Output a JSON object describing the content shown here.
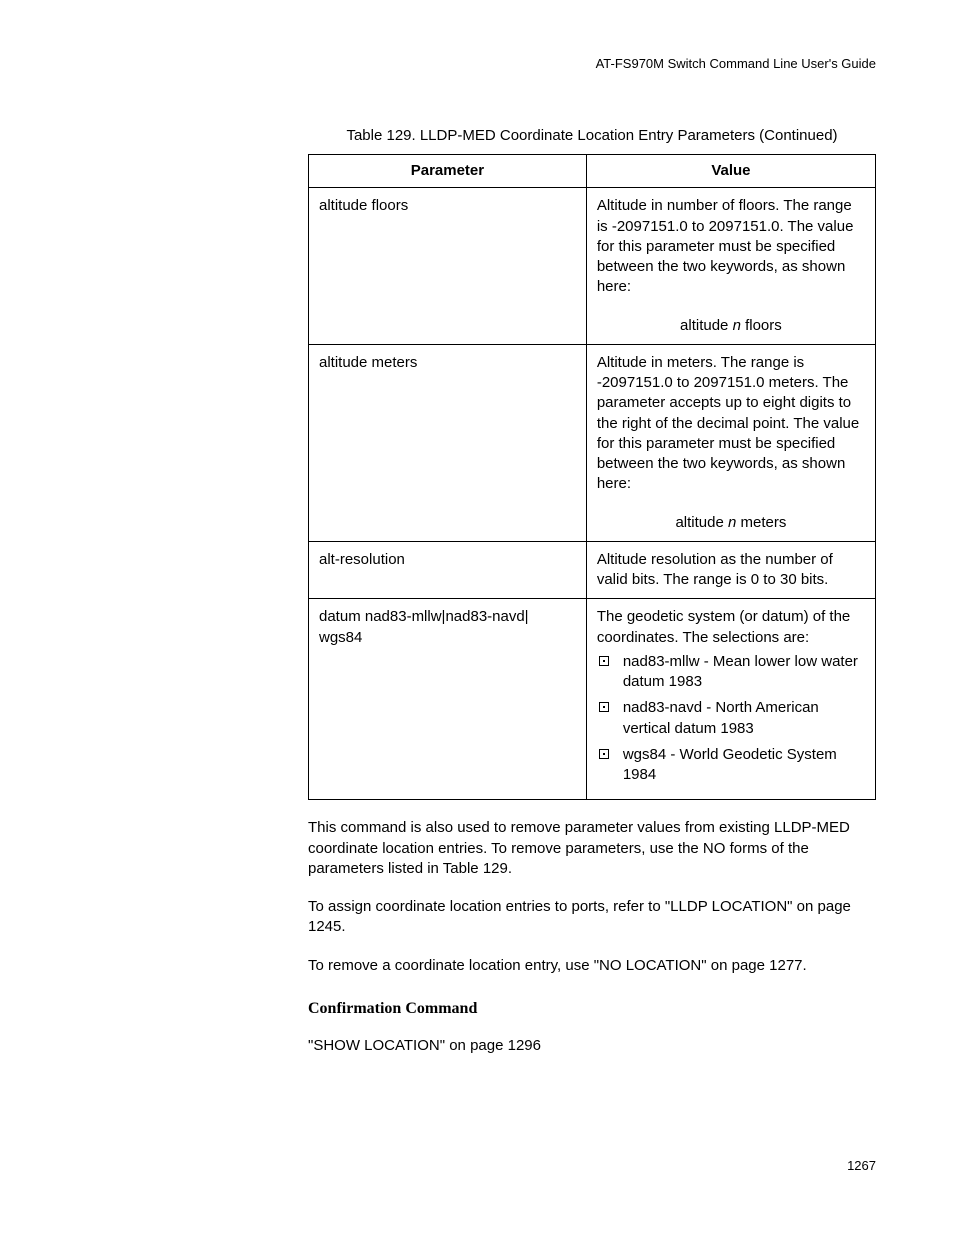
{
  "header": "AT-FS970M Switch Command Line User's Guide",
  "table": {
    "caption": "Table 129. LLDP-MED Coordinate Location Entry Parameters (Continued)",
    "col_parameter": "Parameter",
    "col_value": "Value",
    "rows": [
      {
        "param": "altitude floors",
        "desc": "Altitude in number of floors. The range is -2097151.0 to 2097151.0. The value for this parameter must be specified between the two keywords, as shown here:",
        "example_pre": "altitude ",
        "example_var": "n",
        "example_post": " floors"
      },
      {
        "param": "altitude meters",
        "desc": "Altitude in meters. The range is -2097151.0 to 2097151.0 meters. The parameter accepts up to eight digits to the right of the decimal point. The value for this parameter must be specified between the two keywords, as shown here:",
        "example_pre": "altitude ",
        "example_var": "n",
        "example_post": " meters"
      },
      {
        "param": "alt-resolution",
        "desc": "Altitude resolution as the number of valid bits. The range is 0 to 30 bits."
      },
      {
        "param": "datum nad83-mllw|nad83-navd| wgs84",
        "desc": "The geodetic system (or datum) of the coordinates. The selections are:",
        "bullets": [
          "nad83-mllw - Mean lower low water datum 1983",
          "nad83-navd - North American vertical datum 1983",
          "wgs84 - World Geodetic System 1984"
        ]
      }
    ]
  },
  "p1": "This command is also used to remove parameter values from existing LLDP-MED coordinate location entries. To remove parameters, use the NO forms of the parameters listed in Table 129.",
  "p2": "To assign coordinate location entries to ports, refer to \"LLDP LOCATION\" on page 1245.",
  "p3": "To remove a coordinate location entry, use \"NO LOCATION\" on page 1277.",
  "heading": "Confirmation Command",
  "p4": "\"SHOW LOCATION\" on page 1296",
  "pageno": "1267"
}
